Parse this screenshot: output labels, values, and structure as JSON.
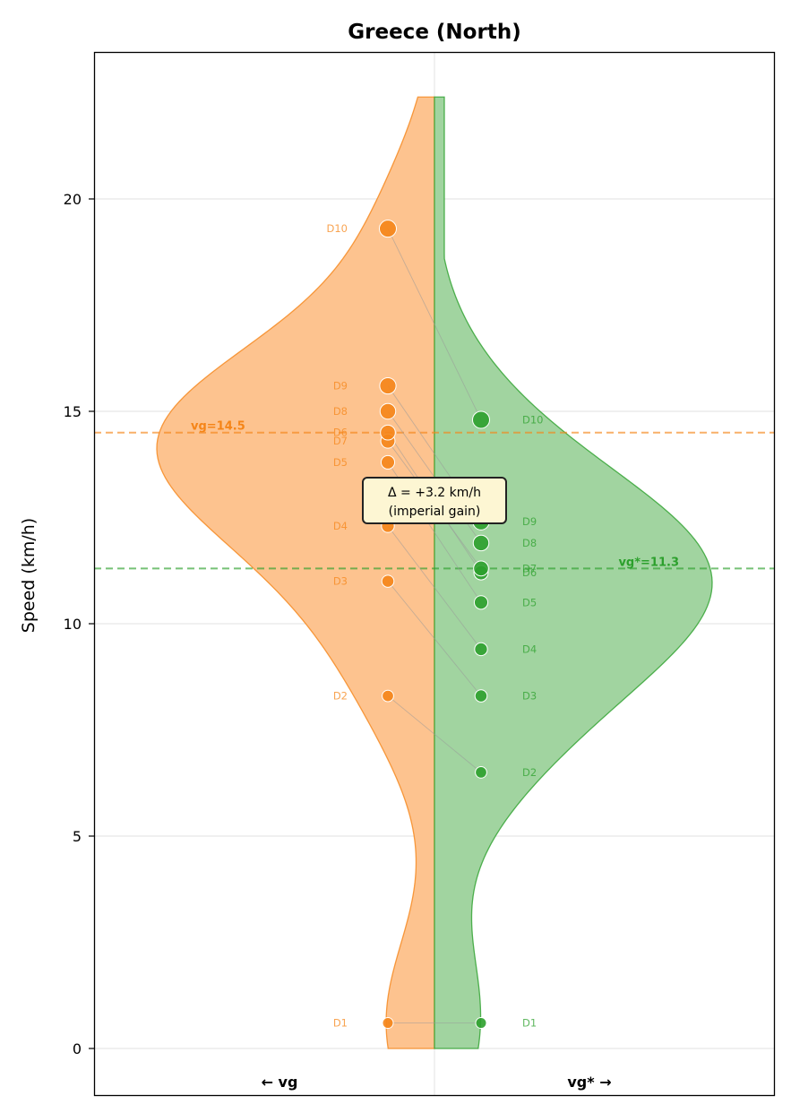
{
  "chart_data": {
    "type": "split-violin",
    "title": "Greece (North)",
    "ylabel": "Speed (km/h)",
    "ylim": [
      -1.1,
      23.4
    ],
    "yticks": [
      0,
      5,
      10,
      15,
      20
    ],
    "grid": true,
    "series": [
      {
        "name": "vg",
        "side": "left",
        "side_label": "← vg",
        "color": "#f58518",
        "fill": "#fdc38f",
        "mean": 14.5,
        "mean_label": "vg=14.5",
        "points": [
          {
            "label": "D1",
            "value": 0.6
          },
          {
            "label": "D2",
            "value": 8.3
          },
          {
            "label": "D3",
            "value": 11.0
          },
          {
            "label": "D4",
            "value": 12.3
          },
          {
            "label": "D5",
            "value": 13.8
          },
          {
            "label": "D7",
            "value": 14.3
          },
          {
            "label": "D6",
            "value": 14.5
          },
          {
            "label": "D8",
            "value": 15.0
          },
          {
            "label": "D9",
            "value": 15.6
          },
          {
            "label": "D10",
            "value": 19.3
          }
        ]
      },
      {
        "name": "vg*",
        "side": "right",
        "side_label": "vg* →",
        "color": "#2ca02c",
        "fill": "#a1d4a0",
        "mean": 11.3,
        "mean_label": "vg*=11.3",
        "points": [
          {
            "label": "D1",
            "value": 0.6
          },
          {
            "label": "D2",
            "value": 6.5
          },
          {
            "label": "D3",
            "value": 8.3
          },
          {
            "label": "D4",
            "value": 9.4
          },
          {
            "label": "D5",
            "value": 10.5
          },
          {
            "label": "D6",
            "value": 11.2
          },
          {
            "label": "D7",
            "value": 11.3
          },
          {
            "label": "D8",
            "value": 11.9
          },
          {
            "label": "D9",
            "value": 12.4
          },
          {
            "label": "D10",
            "value": 14.8
          }
        ]
      }
    ],
    "annotation": {
      "line1": "Δ = +3.2 km/h",
      "line2": "(imperial gain)"
    }
  }
}
